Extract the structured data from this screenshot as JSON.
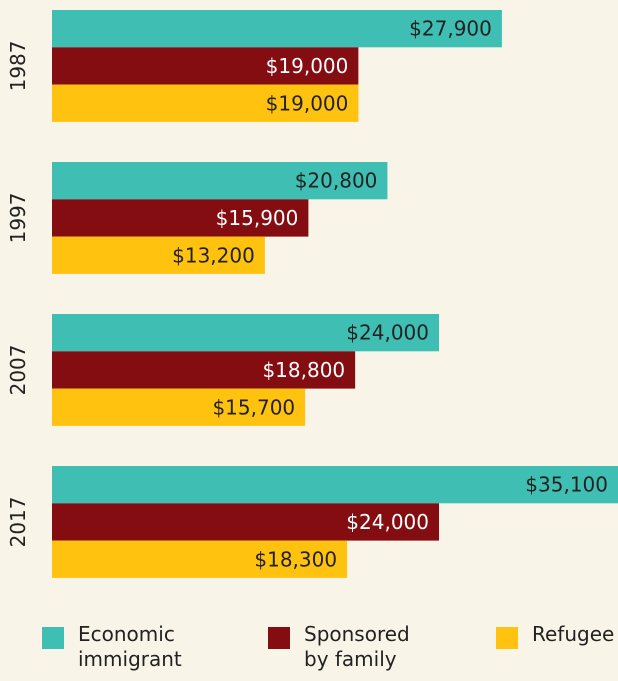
{
  "chart_data": {
    "type": "hbar",
    "categories": [
      "1987",
      "1997",
      "2007",
      "2017"
    ],
    "series": [
      {
        "name": "Economic immigrant",
        "color": "#3fbfb3",
        "values": [
          27900,
          20800,
          24000,
          35100
        ],
        "value_labels": [
          "$27,900",
          "$20,800",
          "$24,000",
          "$35,100"
        ]
      },
      {
        "name": "Sponsored by family",
        "color": "#840d12",
        "values": [
          19000,
          15900,
          18800,
          24000
        ],
        "value_labels": [
          "$19,000",
          "$15,900",
          "$18,800",
          "$24,000"
        ]
      },
      {
        "name": "Refugee",
        "color": "#ffc20f",
        "values": [
          19000,
          13200,
          15700,
          18300
        ],
        "value_labels": [
          "$19,000",
          "$13,200",
          "$15,700",
          "$18,300"
        ]
      }
    ],
    "xlim": [
      0,
      35100
    ],
    "legend": "bottom"
  }
}
